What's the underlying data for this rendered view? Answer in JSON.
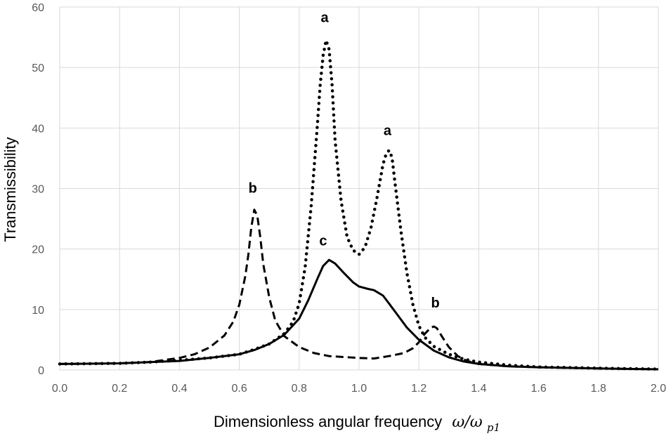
{
  "chart_data": {
    "type": "line",
    "title": "",
    "xlabel": "Dimensionless angular frequency",
    "xlabel_math": "ω/ω",
    "xlabel_sub": "p1",
    "ylabel": "Transmissibility",
    "xlim": [
      0.0,
      2.0
    ],
    "ylim": [
      0,
      60
    ],
    "x_ticks": [
      "0.0",
      "0.2",
      "0.4",
      "0.6",
      "0.8",
      "1.0",
      "1.2",
      "1.4",
      "1.6",
      "1.8",
      "2.0"
    ],
    "y_ticks": [
      "0",
      "10",
      "20",
      "30",
      "40",
      "50",
      "60"
    ],
    "grid": true,
    "legend": "none",
    "series": [
      {
        "style": "dotted",
        "points": [
          [
            0,
            1
          ],
          [
            0.2,
            1.1
          ],
          [
            0.3,
            1.3
          ],
          [
            0.4,
            1.6
          ],
          [
            0.5,
            2
          ],
          [
            0.6,
            2.6
          ],
          [
            0.65,
            3.4
          ],
          [
            0.7,
            4.3
          ],
          [
            0.75,
            6
          ],
          [
            0.78,
            8
          ],
          [
            0.8,
            11
          ],
          [
            0.82,
            17
          ],
          [
            0.84,
            27
          ],
          [
            0.86,
            40
          ],
          [
            0.87,
            47
          ],
          [
            0.88,
            52
          ],
          [
            0.89,
            54.5
          ],
          [
            0.9,
            53
          ],
          [
            0.91,
            47
          ],
          [
            0.92,
            38
          ],
          [
            0.94,
            28
          ],
          [
            0.96,
            22
          ],
          [
            0.98,
            19.8
          ],
          [
            1.0,
            19.1
          ],
          [
            1.02,
            20.3
          ],
          [
            1.04,
            23.5
          ],
          [
            1.06,
            28.5
          ],
          [
            1.08,
            34
          ],
          [
            1.09,
            35.6
          ],
          [
            1.1,
            36.3
          ],
          [
            1.11,
            35.2
          ],
          [
            1.12,
            31
          ],
          [
            1.14,
            23
          ],
          [
            1.16,
            16
          ],
          [
            1.18,
            10.8
          ],
          [
            1.2,
            7.3
          ],
          [
            1.22,
            5.4
          ],
          [
            1.25,
            3.9
          ],
          [
            1.3,
            2.6
          ],
          [
            1.35,
            1.8
          ],
          [
            1.4,
            1.3
          ],
          [
            1.5,
            0.8
          ],
          [
            1.6,
            0.5
          ],
          [
            1.8,
            0.3
          ],
          [
            2.0,
            0.15
          ]
        ]
      },
      {
        "style": "dashed",
        "points": [
          [
            0,
            1
          ],
          [
            0.2,
            1.1
          ],
          [
            0.3,
            1.3
          ],
          [
            0.4,
            2
          ],
          [
            0.45,
            2.6
          ],
          [
            0.5,
            3.7
          ],
          [
            0.55,
            5.7
          ],
          [
            0.58,
            8
          ],
          [
            0.6,
            10.8
          ],
          [
            0.62,
            15.5
          ],
          [
            0.63,
            19
          ],
          [
            0.64,
            23.5
          ],
          [
            0.65,
            26.5
          ],
          [
            0.66,
            25.5
          ],
          [
            0.67,
            22
          ],
          [
            0.68,
            17.5
          ],
          [
            0.7,
            12
          ],
          [
            0.72,
            8.2
          ],
          [
            0.75,
            5.6
          ],
          [
            0.8,
            3.8
          ],
          [
            0.85,
            2.8
          ],
          [
            0.9,
            2.3
          ],
          [
            1.0,
            2
          ],
          [
            1.05,
            1.9
          ],
          [
            1.1,
            2.3
          ],
          [
            1.15,
            2.8
          ],
          [
            1.18,
            3.6
          ],
          [
            1.2,
            4.6
          ],
          [
            1.22,
            6
          ],
          [
            1.24,
            7
          ],
          [
            1.25,
            7.2
          ],
          [
            1.26,
            6.9
          ],
          [
            1.28,
            5.3
          ],
          [
            1.3,
            3.8
          ],
          [
            1.33,
            2.3
          ],
          [
            1.36,
            1.5
          ],
          [
            1.4,
            1
          ],
          [
            1.5,
            0.6
          ],
          [
            1.6,
            0.45
          ],
          [
            1.8,
            0.25
          ],
          [
            2.0,
            0.12
          ]
        ]
      },
      {
        "style": "solid",
        "points": [
          [
            0,
            1
          ],
          [
            0.2,
            1.1
          ],
          [
            0.3,
            1.3
          ],
          [
            0.4,
            1.5
          ],
          [
            0.5,
            2
          ],
          [
            0.6,
            2.6
          ],
          [
            0.65,
            3.3
          ],
          [
            0.7,
            4.3
          ],
          [
            0.75,
            5.8
          ],
          [
            0.8,
            8.5
          ],
          [
            0.83,
            11.5
          ],
          [
            0.86,
            15
          ],
          [
            0.88,
            17.2
          ],
          [
            0.9,
            18.2
          ],
          [
            0.92,
            17.6
          ],
          [
            0.95,
            16
          ],
          [
            0.98,
            14.5
          ],
          [
            1.0,
            13.8
          ],
          [
            1.03,
            13.4
          ],
          [
            1.05,
            13.2
          ],
          [
            1.08,
            12.3
          ],
          [
            1.1,
            11
          ],
          [
            1.13,
            9
          ],
          [
            1.16,
            7
          ],
          [
            1.2,
            5
          ],
          [
            1.25,
            3.2
          ],
          [
            1.3,
            2.1
          ],
          [
            1.35,
            1.4
          ],
          [
            1.4,
            1
          ],
          [
            1.5,
            0.6
          ],
          [
            1.6,
            0.45
          ],
          [
            1.8,
            0.25
          ],
          [
            2.0,
            0.12
          ]
        ]
      }
    ],
    "annotations": [
      {
        "text": "a",
        "x": 0.885,
        "y": 57.5
      },
      {
        "text": "a",
        "x": 1.095,
        "y": 38.8
      },
      {
        "text": "b",
        "x": 0.645,
        "y": 29.3
      },
      {
        "text": "b",
        "x": 1.255,
        "y": 10.3
      },
      {
        "text": "c",
        "x": 0.88,
        "y": 20.6
      }
    ]
  }
}
